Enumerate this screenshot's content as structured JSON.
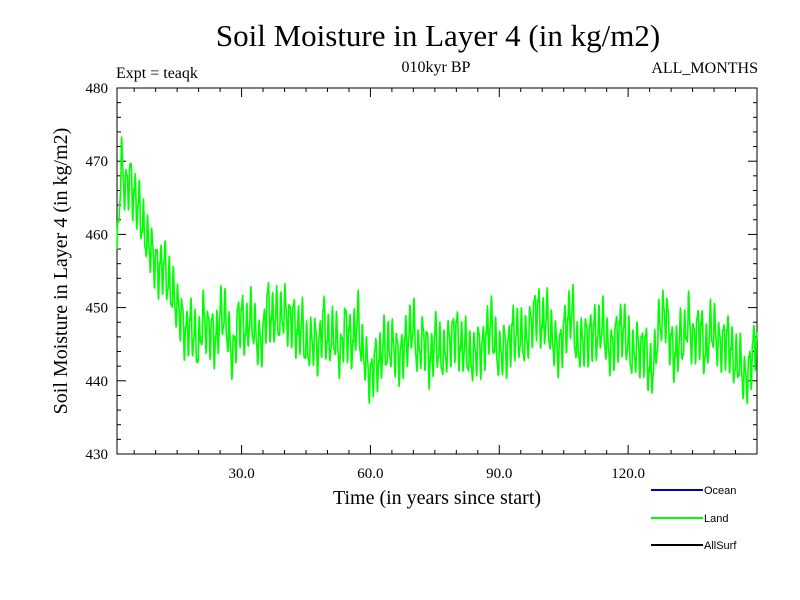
{
  "chart_data": {
    "type": "line",
    "title": "Soil Moisture in Layer 4 (in kg/m2)",
    "subtitle_left": "Expt = teaqk",
    "subtitle_center": "010kyr BP",
    "subtitle_right": "ALL_MONTHS",
    "xlabel": "Time (in years since start)",
    "ylabel": "Soil Moisture in Layer 4 (in kg/m2)",
    "xlim": [
      1,
      150
    ],
    "ylim": [
      430,
      480
    ],
    "xticks": [
      30,
      60,
      90,
      120
    ],
    "xtick_labels": [
      "30.0",
      "60.0",
      "90.0",
      "120.0"
    ],
    "yticks": [
      430,
      440,
      450,
      460,
      470,
      480
    ],
    "ytick_labels": [
      "430",
      "440",
      "450",
      "460",
      "470",
      "480"
    ],
    "legend": [
      {
        "name": "Ocean",
        "color": "#0000cc"
      },
      {
        "name": "Land",
        "color": "#00ff00"
      },
      {
        "name": "AllSurf",
        "color": "#000000"
      }
    ],
    "series": [
      {
        "name": "Land",
        "color": "#00ff00",
        "x": [
          1,
          2,
          3,
          4,
          5,
          6,
          7,
          8,
          9,
          10,
          11,
          12,
          13,
          14,
          15,
          16,
          17,
          18,
          19,
          20,
          21,
          22,
          23,
          24,
          25,
          26,
          27,
          28,
          29,
          30,
          31,
          32,
          33,
          34,
          35,
          36,
          37,
          38,
          39,
          40,
          41,
          42,
          43,
          44,
          45,
          46,
          47,
          48,
          49,
          50,
          51,
          52,
          53,
          54,
          55,
          56,
          57,
          58,
          59,
          60,
          61,
          62,
          63,
          64,
          65,
          66,
          67,
          68,
          69,
          70,
          71,
          72,
          73,
          74,
          75,
          76,
          77,
          78,
          79,
          80,
          81,
          82,
          83,
          84,
          85,
          86,
          87,
          88,
          89,
          90,
          91,
          92,
          93,
          94,
          95,
          96,
          97,
          98,
          99,
          100,
          101,
          102,
          103,
          104,
          105,
          106,
          107,
          108,
          109,
          110,
          111,
          112,
          113,
          114,
          115,
          116,
          117,
          118,
          119,
          120,
          121,
          122,
          123,
          124,
          125,
          126,
          127,
          128,
          129,
          130,
          131,
          132,
          133,
          134,
          135,
          136,
          137,
          138,
          139,
          140,
          141,
          142,
          143,
          144,
          145,
          146,
          147,
          148,
          149,
          150
        ],
        "y": [
          457,
          470,
          466,
          468,
          465,
          464,
          461,
          459,
          458,
          456,
          455,
          456,
          453,
          452,
          450,
          449,
          446,
          448,
          446,
          444,
          449,
          447,
          447,
          445,
          449,
          449,
          446,
          443,
          448,
          449,
          446,
          449,
          447,
          445,
          446,
          451,
          448,
          449,
          448,
          450,
          448,
          449,
          446,
          448,
          444,
          445,
          446,
          444,
          449,
          445,
          446,
          446,
          443,
          448,
          446,
          445,
          449,
          444,
          443,
          440,
          443,
          442,
          445,
          444,
          445,
          444,
          443,
          445,
          446,
          448,
          443,
          446,
          445,
          442,
          446,
          444,
          443,
          445,
          446,
          447,
          444,
          445,
          443,
          443,
          445,
          444,
          446,
          448,
          445,
          443,
          445,
          444,
          447,
          446,
          446,
          445,
          447,
          449,
          450,
          447,
          449,
          446,
          445,
          444,
          447,
          448,
          450,
          444,
          445,
          446,
          446,
          447,
          446,
          448,
          445,
          444,
          446,
          447,
          447,
          445,
          443,
          445,
          444,
          445,
          441,
          442,
          447,
          449,
          449,
          445,
          443,
          446,
          445,
          449,
          445,
          447,
          447,
          443,
          447,
          447,
          445,
          445,
          446,
          444,
          442,
          443,
          440,
          441,
          444,
          446
        ],
        "amplitude": [
          2,
          3,
          3,
          3,
          3,
          3,
          3,
          3,
          3,
          3,
          3,
          3,
          3,
          3,
          3,
          3,
          3,
          3,
          3,
          3,
          3,
          3,
          3,
          3,
          3,
          3,
          3,
          3,
          3,
          3,
          3,
          3,
          3,
          3,
          3,
          3,
          3,
          3,
          3,
          3,
          3,
          3,
          3,
          3,
          3,
          3,
          3,
          3,
          3,
          3,
          3,
          3,
          3,
          3,
          3,
          3,
          3,
          3,
          3,
          3,
          3,
          3,
          3,
          3,
          3,
          3,
          3,
          3,
          3,
          3,
          3,
          3,
          3,
          3,
          3,
          3,
          3,
          3,
          3,
          3,
          3,
          3,
          3,
          3,
          3,
          3,
          3,
          3,
          3,
          3,
          3,
          3,
          3,
          3,
          3,
          3,
          3,
          3,
          3,
          3,
          3,
          3,
          3,
          3,
          3,
          3,
          3,
          3,
          3,
          3,
          3,
          3,
          3,
          3,
          3,
          3,
          3,
          3,
          3,
          3,
          3,
          3,
          3,
          3,
          3,
          3,
          3,
          3,
          3,
          3,
          3,
          3,
          3,
          3,
          3,
          3,
          3,
          3,
          3,
          3,
          3,
          3,
          3,
          3,
          3,
          3,
          3,
          3,
          3,
          3
        ]
      }
    ]
  }
}
